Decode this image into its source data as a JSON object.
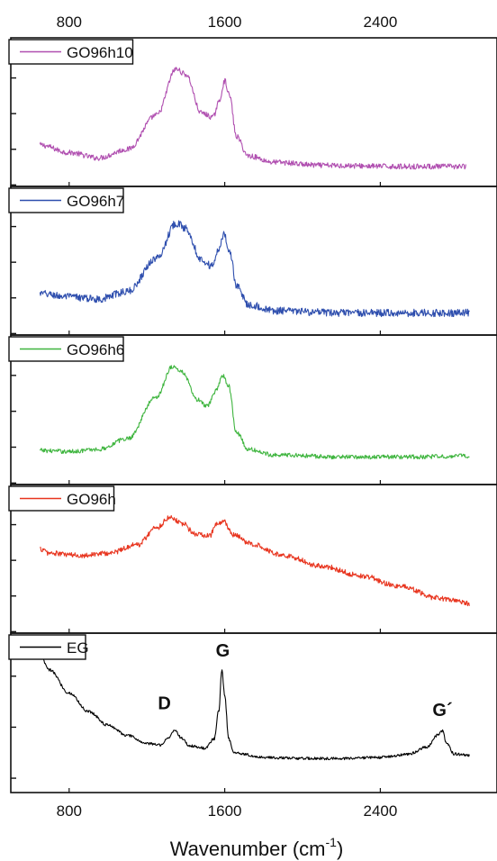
{
  "chart_data": {
    "type": "line",
    "xlabel": "Wavenumber (cm",
    "xlabel_sup": "-1",
    "xlabel_close": ")",
    "xlim": [
      500,
      3000
    ],
    "xticks": [
      800,
      1600,
      2400
    ],
    "xtick_labels": [
      "800",
      "1600",
      "2400"
    ],
    "grid": false,
    "panels": [
      {
        "name": "GO96h10",
        "color": "#b04fb0",
        "noise": 0.025,
        "points": [
          [
            650,
            0.22
          ],
          [
            800,
            0.15
          ],
          [
            950,
            0.1
          ],
          [
            1100,
            0.18
          ],
          [
            1250,
            0.5
          ],
          [
            1350,
            0.93
          ],
          [
            1400,
            0.88
          ],
          [
            1480,
            0.52
          ],
          [
            1540,
            0.48
          ],
          [
            1570,
            0.62
          ],
          [
            1600,
            0.82
          ],
          [
            1625,
            0.68
          ],
          [
            1660,
            0.3
          ],
          [
            1720,
            0.12
          ],
          [
            1850,
            0.06
          ],
          [
            2100,
            0.03
          ],
          [
            2500,
            0.02
          ],
          [
            2840,
            0.02
          ]
        ]
      },
      {
        "name": "GO96h7",
        "color": "#2f4fae",
        "noise": 0.035,
        "points": [
          [
            650,
            0.22
          ],
          [
            800,
            0.19
          ],
          [
            950,
            0.17
          ],
          [
            1100,
            0.24
          ],
          [
            1250,
            0.55
          ],
          [
            1350,
            0.88
          ],
          [
            1400,
            0.83
          ],
          [
            1480,
            0.54
          ],
          [
            1530,
            0.48
          ],
          [
            1570,
            0.62
          ],
          [
            1595,
            0.78
          ],
          [
            1625,
            0.62
          ],
          [
            1660,
            0.3
          ],
          [
            1720,
            0.12
          ],
          [
            1850,
            0.06
          ],
          [
            2200,
            0.04
          ],
          [
            2600,
            0.04
          ],
          [
            2860,
            0.04
          ]
        ]
      },
      {
        "name": "GO96h6",
        "color": "#3fb53f",
        "noise": 0.02,
        "points": [
          [
            650,
            0.15
          ],
          [
            800,
            0.14
          ],
          [
            950,
            0.16
          ],
          [
            1100,
            0.26
          ],
          [
            1250,
            0.65
          ],
          [
            1330,
            0.93
          ],
          [
            1380,
            0.88
          ],
          [
            1460,
            0.62
          ],
          [
            1510,
            0.56
          ],
          [
            1560,
            0.72
          ],
          [
            1590,
            0.85
          ],
          [
            1620,
            0.75
          ],
          [
            1660,
            0.32
          ],
          [
            1720,
            0.16
          ],
          [
            1850,
            0.11
          ],
          [
            2200,
            0.09
          ],
          [
            2600,
            0.09
          ],
          [
            2860,
            0.1
          ]
        ]
      },
      {
        "name": "GO96h",
        "color": "#e8351f",
        "noise": 0.025,
        "points": [
          [
            650,
            0.62
          ],
          [
            700,
            0.58
          ],
          [
            850,
            0.56
          ],
          [
            1000,
            0.58
          ],
          [
            1150,
            0.66
          ],
          [
            1250,
            0.82
          ],
          [
            1320,
            0.92
          ],
          [
            1380,
            0.86
          ],
          [
            1450,
            0.76
          ],
          [
            1520,
            0.74
          ],
          [
            1560,
            0.85
          ],
          [
            1600,
            0.87
          ],
          [
            1640,
            0.75
          ],
          [
            1750,
            0.66
          ],
          [
            1900,
            0.56
          ],
          [
            2100,
            0.46
          ],
          [
            2300,
            0.37
          ],
          [
            2500,
            0.27
          ],
          [
            2700,
            0.16
          ],
          [
            2860,
            0.11
          ]
        ]
      },
      {
        "name": "EG",
        "color": "#000000",
        "noise": 0.012,
        "points": [
          [
            650,
            1.02
          ],
          [
            700,
            0.9
          ],
          [
            800,
            0.7
          ],
          [
            900,
            0.54
          ],
          [
            1000,
            0.42
          ],
          [
            1100,
            0.33
          ],
          [
            1200,
            0.26
          ],
          [
            1270,
            0.25
          ],
          [
            1310,
            0.31
          ],
          [
            1345,
            0.38
          ],
          [
            1375,
            0.31
          ],
          [
            1420,
            0.24
          ],
          [
            1500,
            0.22
          ],
          [
            1545,
            0.3
          ],
          [
            1570,
            0.55
          ],
          [
            1585,
            0.9
          ],
          [
            1600,
            0.68
          ],
          [
            1620,
            0.3
          ],
          [
            1650,
            0.18
          ],
          [
            1800,
            0.14
          ],
          [
            2000,
            0.13
          ],
          [
            2200,
            0.13
          ],
          [
            2400,
            0.14
          ],
          [
            2550,
            0.17
          ],
          [
            2640,
            0.23
          ],
          [
            2690,
            0.33
          ],
          [
            2720,
            0.37
          ],
          [
            2740,
            0.26
          ],
          [
            2780,
            0.17
          ],
          [
            2860,
            0.16
          ]
        ]
      }
    ],
    "annotations": [
      {
        "text": "D",
        "x": 1290,
        "y": 0.56
      },
      {
        "text": "G",
        "x": 1590,
        "y": 1.02
      },
      {
        "text": "G´",
        "x": 2720,
        "y": 0.5
      }
    ]
  }
}
